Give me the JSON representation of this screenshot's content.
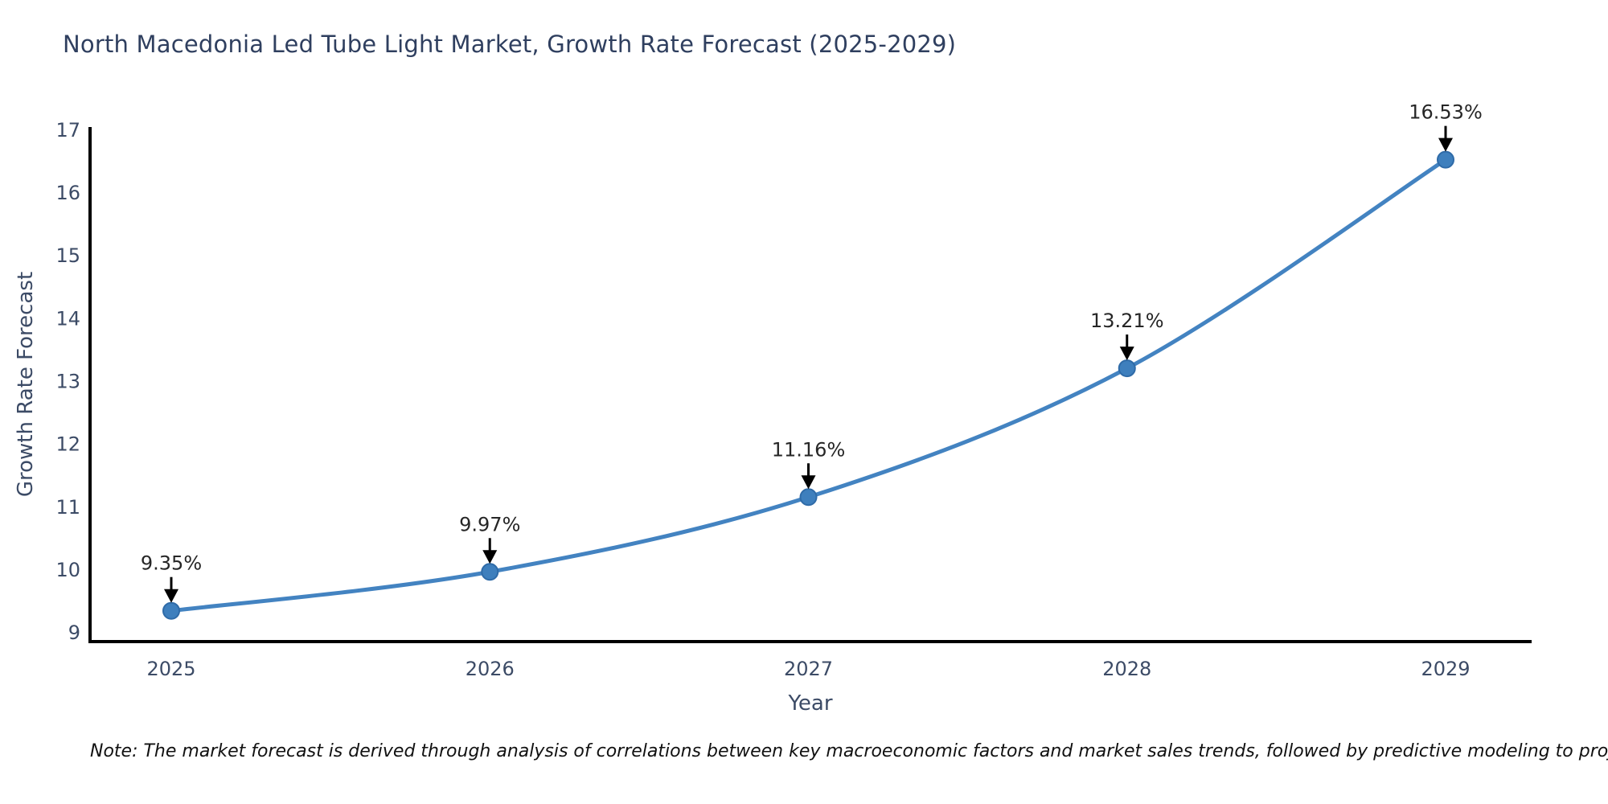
{
  "chart": {
    "note": "Note: The market forecast is derived through analysis of correlations between key macroeconomic factors and market sales trends, followed by predictive modeling to project future sales"
  },
  "chart_data": {
    "type": "line",
    "title": "North Macedonia Led Tube Light Market, Growth Rate Forecast (2025-2029)",
    "xlabel": "Year",
    "ylabel": "Growth Rate Forecast",
    "categories": [
      "2025",
      "2026",
      "2027",
      "2028",
      "2029"
    ],
    "values": [
      9.35,
      9.97,
      11.16,
      13.21,
      16.53
    ],
    "point_labels": [
      "9.35%",
      "9.97%",
      "11.16%",
      "13.21%",
      "16.53%"
    ],
    "yticks": [
      9,
      10,
      11,
      12,
      13,
      14,
      15,
      16,
      17
    ],
    "ylim": [
      8.86,
      17.05
    ],
    "grid": false,
    "legend": "none",
    "line_smooth": true,
    "colors": {
      "line": "#4383c1",
      "marker_fill": "#3e7fbd",
      "marker_edge": "#2f6ba8",
      "axis": "#000000",
      "tick_label": "#3c4b66",
      "title": "#2f3f5f",
      "axis_label": "#3c4b66",
      "annotation": "#262626",
      "arrow": "#000000"
    }
  }
}
